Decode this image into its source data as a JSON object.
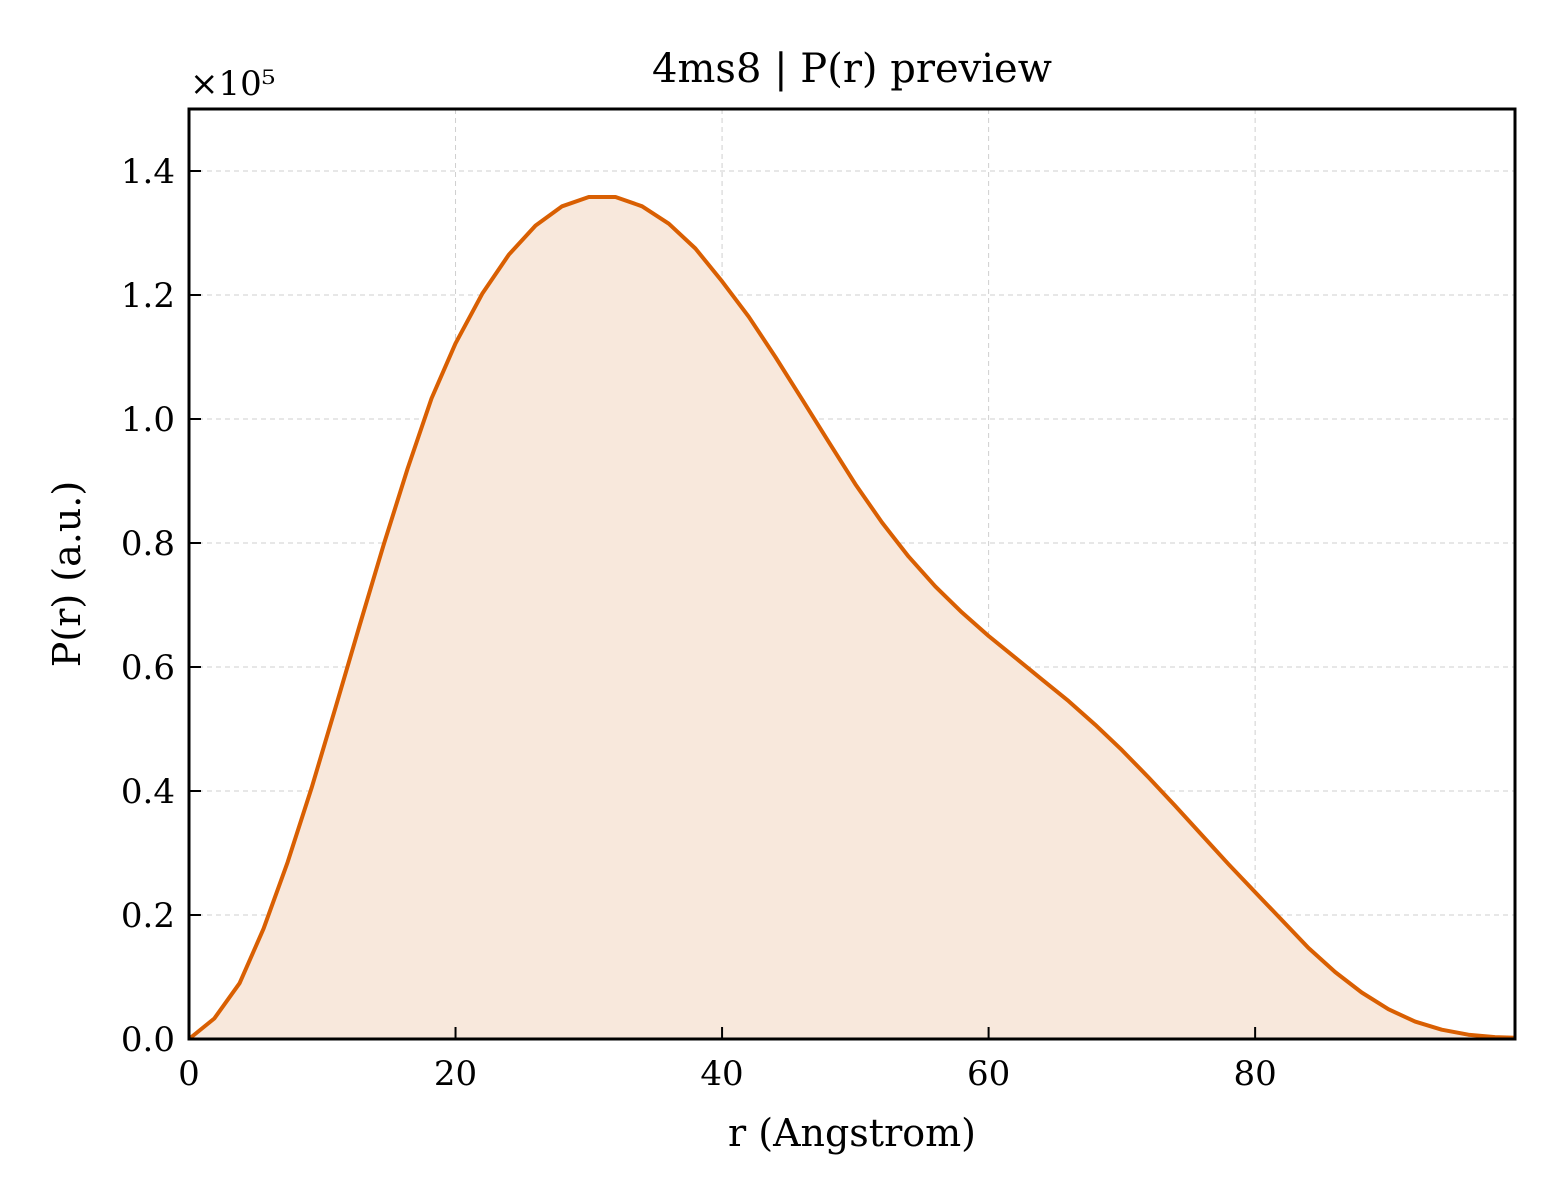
{
  "chart_data": {
    "type": "area",
    "title": "4ms8 | P(r) preview",
    "xlabel": "r (Angstrom)",
    "ylabel": "P(r) (a.u.)",
    "y_multiplier_label": "×10⁵",
    "xlim": [
      0,
      99.5
    ],
    "ylim": [
      0,
      1.5
    ],
    "xticks": [
      0,
      20,
      40,
      60,
      80
    ],
    "xtick_labels": [
      "0",
      "20",
      "40",
      "60",
      "80"
    ],
    "yticks": [
      0,
      0.2,
      0.4,
      0.6,
      0.8,
      1.0,
      1.2,
      1.4
    ],
    "ytick_labels": [
      "0.0",
      "0.2",
      "0.4",
      "0.6",
      "0.8",
      "1.0",
      "1.2",
      "1.4"
    ],
    "grid": true,
    "line_color": "#d95f02",
    "fill_color": "#f8e8dc",
    "series": [
      {
        "x": [
          0,
          1.9,
          3.8,
          5.6,
          7.4,
          9.2,
          11.0,
          12.8,
          14.6,
          16.4,
          18.2,
          20.0,
          22.0,
          24.0,
          26.0,
          28.0,
          30.0,
          32.0,
          34.0,
          36.0,
          38.0,
          40.0,
          42.0,
          44.0,
          46.0,
          48.0,
          50.0,
          52.0,
          54.0,
          56.0,
          58.0,
          60.0,
          62.0,
          64.0,
          66.0,
          68.0,
          70.0,
          72.0,
          74.0,
          76.0,
          78.0,
          80.0,
          82.0,
          84.0,
          86.0,
          88.0,
          90.0,
          92.0,
          94.0,
          96.0,
          98.0,
          99.5
        ],
        "y": [
          0.0,
          0.033,
          0.09,
          0.178,
          0.285,
          0.405,
          0.535,
          0.667,
          0.797,
          0.92,
          1.033,
          1.122,
          1.202,
          1.265,
          1.312,
          1.343,
          1.358,
          1.358,
          1.343,
          1.315,
          1.275,
          1.222,
          1.165,
          1.1,
          1.032,
          0.963,
          0.895,
          0.833,
          0.778,
          0.73,
          0.688,
          0.65,
          0.615,
          0.58,
          0.545,
          0.507,
          0.466,
          0.422,
          0.376,
          0.329,
          0.282,
          0.237,
          0.192,
          0.147,
          0.108,
          0.075,
          0.048,
          0.028,
          0.015,
          0.007,
          0.003,
          0.002
        ]
      }
    ]
  }
}
